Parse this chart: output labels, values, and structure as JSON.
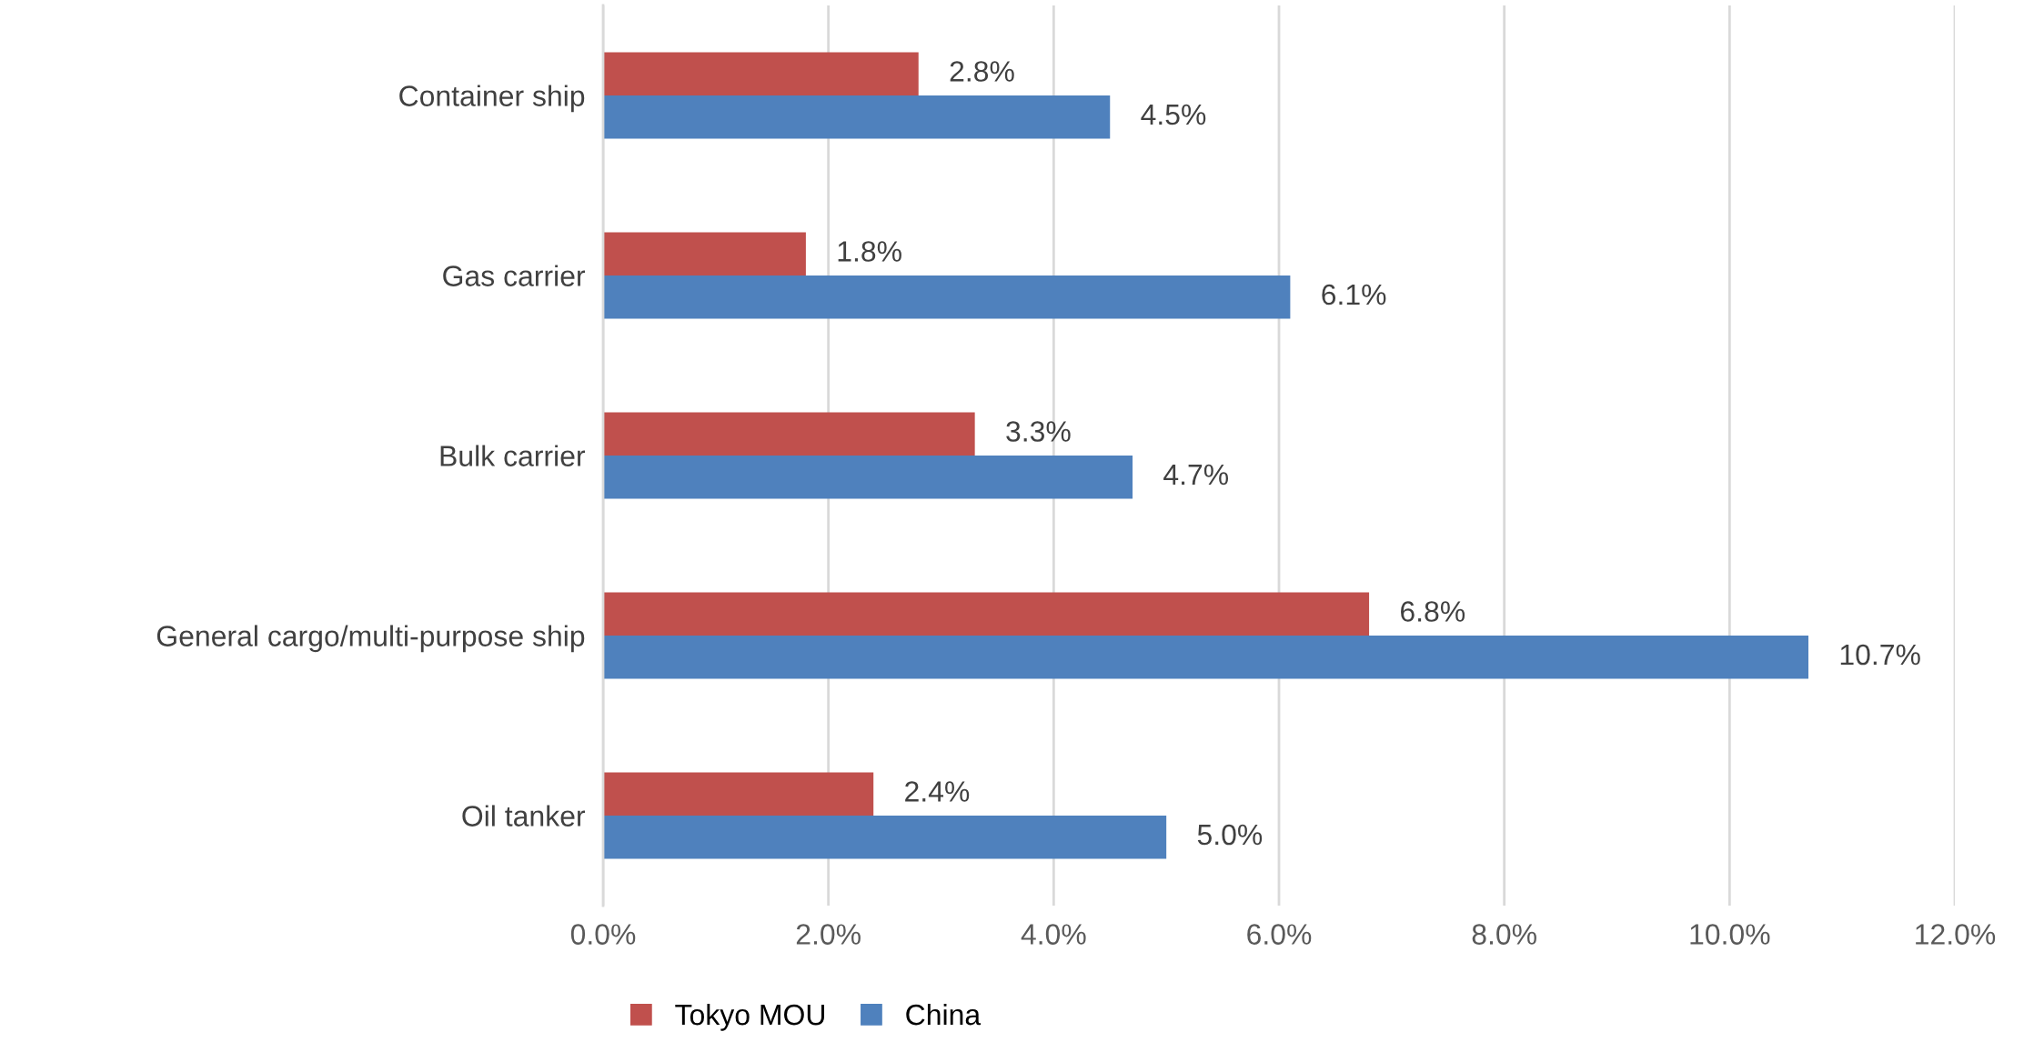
{
  "chart_data": {
    "type": "bar",
    "orientation": "horizontal",
    "categories": [
      "Container ship",
      "Gas carrier",
      "Bulk carrier",
      "General cargo/multi-purpose ship",
      "Oil tanker"
    ],
    "series": [
      {
        "name": "Tokyo MOU",
        "color": "#c0504d",
        "values": [
          2.8,
          1.8,
          3.3,
          6.8,
          2.4
        ],
        "value_labels": [
          "2.8%",
          "1.8%",
          "3.3%",
          "6.8%",
          "2.4%"
        ]
      },
      {
        "name": "China",
        "color": "#4f81bd",
        "values": [
          4.5,
          6.1,
          4.7,
          10.7,
          5.0
        ],
        "value_labels": [
          "4.5%",
          "6.1%",
          "4.7%",
          "10.7%",
          "5.0%"
        ]
      }
    ],
    "xlim": [
      0,
      12
    ],
    "xticks": [
      {
        "value": 0,
        "label": "0.0%"
      },
      {
        "value": 2,
        "label": "2.0%"
      },
      {
        "value": 4,
        "label": "4.0%"
      },
      {
        "value": 6,
        "label": "6.0%"
      },
      {
        "value": 8,
        "label": "8.0%"
      },
      {
        "value": 10,
        "label": "10.0%"
      },
      {
        "value": 12,
        "label": "12.0%"
      }
    ],
    "grid": "x",
    "legend": "bottom"
  }
}
